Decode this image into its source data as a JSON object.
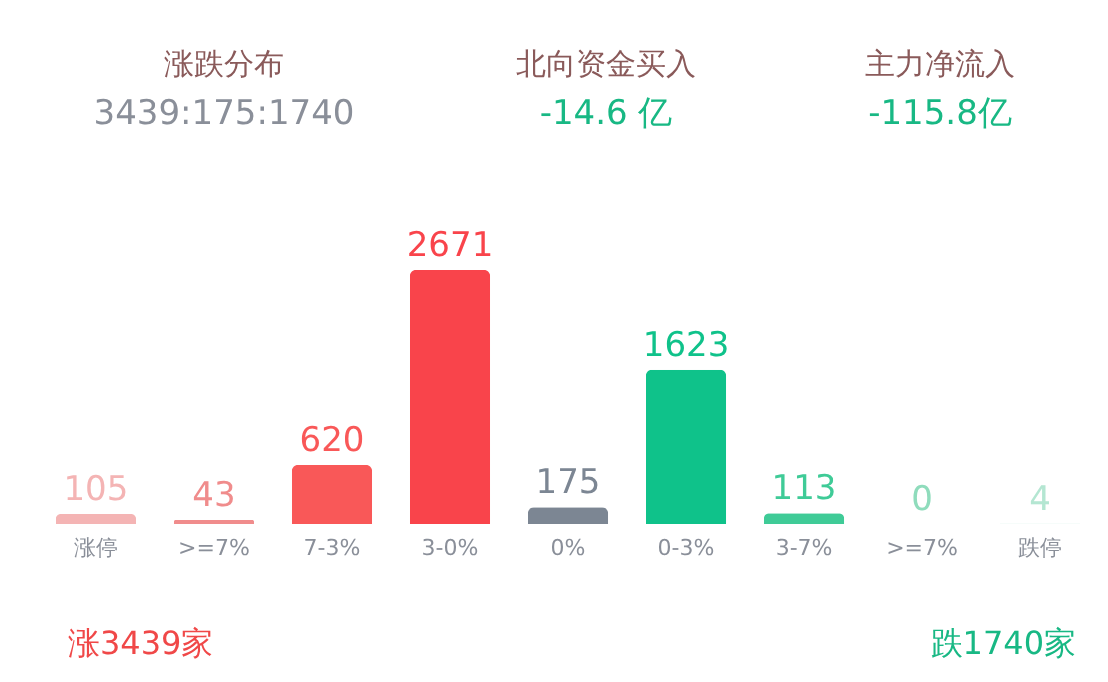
{
  "chart_data": {
    "type": "bar",
    "categories": [
      "涨停",
      ">=7%",
      "7-3%",
      "3-0%",
      "0%",
      "0-3%",
      "3-7%",
      ">=7%",
      "跌停"
    ],
    "values": [
      105,
      43,
      620,
      2671,
      175,
      1623,
      113,
      0,
      4
    ],
    "colors": [
      "#f4b4b4",
      "#f08c8c",
      "#f95858",
      "#f9444b",
      "#7c8693",
      "#0fc28a",
      "#3fcb97",
      "#8fdcbc",
      "#b4e6d2"
    ],
    "data_labels": true,
    "grid": false,
    "annotations": [
      "涨跌分布",
      "3439:175:1740",
      "北向资金买入",
      "-14.6 亿",
      "主力净流入",
      "-115.8亿",
      "涨3439家",
      "跌1740家"
    ]
  }
}
